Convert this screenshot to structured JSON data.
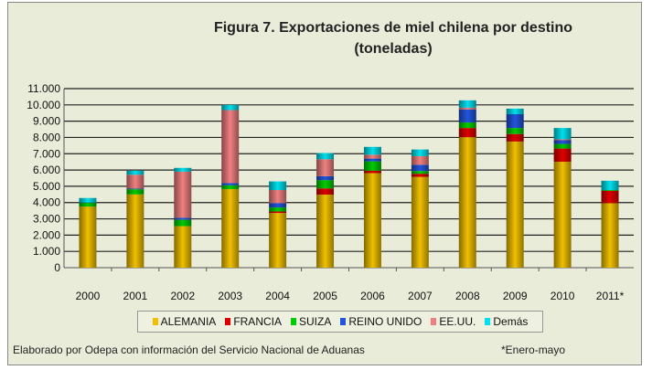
{
  "chart_data": {
    "type": "bar",
    "stacked": true,
    "title": "Figura 7. Exportaciones de miel chilena por destino",
    "subtitle": "(toneladas)",
    "xlabel": "",
    "ylabel": "",
    "ylim": [
      0,
      11000
    ],
    "yticks": [
      "0",
      "1.000",
      "2.000",
      "3.000",
      "4.000",
      "5.000",
      "6.000",
      "7.000",
      "8.000",
      "9.000",
      "10.000",
      "11.000"
    ],
    "categories": [
      "2000",
      "2001",
      "2002",
      "2003",
      "2004",
      "2005",
      "2006",
      "2007",
      "2008",
      "2009",
      "2010",
      "2011*"
    ],
    "series": [
      {
        "name": "ALEMANIA",
        "color": "#f0c000",
        "values": [
          3750,
          4500,
          2550,
          4830,
          3360,
          4490,
          5810,
          5580,
          8020,
          7750,
          6510,
          3960
        ]
      },
      {
        "name": "FRANCIA",
        "color": "#e00000",
        "values": [
          0,
          0,
          0,
          0,
          90,
          380,
          150,
          190,
          560,
          460,
          810,
          760
        ]
      },
      {
        "name": "SUIZA",
        "color": "#00cc00",
        "values": [
          230,
          320,
          390,
          230,
          250,
          510,
          570,
          170,
          340,
          370,
          280,
          50
        ]
      },
      {
        "name": "REINO UNIDO",
        "color": "#2255dd",
        "values": [
          20,
          40,
          130,
          140,
          260,
          240,
          170,
          380,
          800,
          850,
          230,
          0
        ]
      },
      {
        "name": "EE.UU.",
        "color": "#f08080",
        "values": [
          0,
          850,
          2830,
          4480,
          810,
          1040,
          240,
          530,
          110,
          0,
          60,
          0
        ]
      },
      {
        "name": "Demás",
        "color": "#00e0ee",
        "values": [
          280,
          250,
          230,
          320,
          530,
          380,
          480,
          410,
          450,
          340,
          690,
          570
        ]
      }
    ],
    "grid": true,
    "legend_position": "bottom"
  },
  "footer": "Elaborado por Odepa con información del Servicio Nacional de Aduanas",
  "footnote": "*Enero-mayo"
}
